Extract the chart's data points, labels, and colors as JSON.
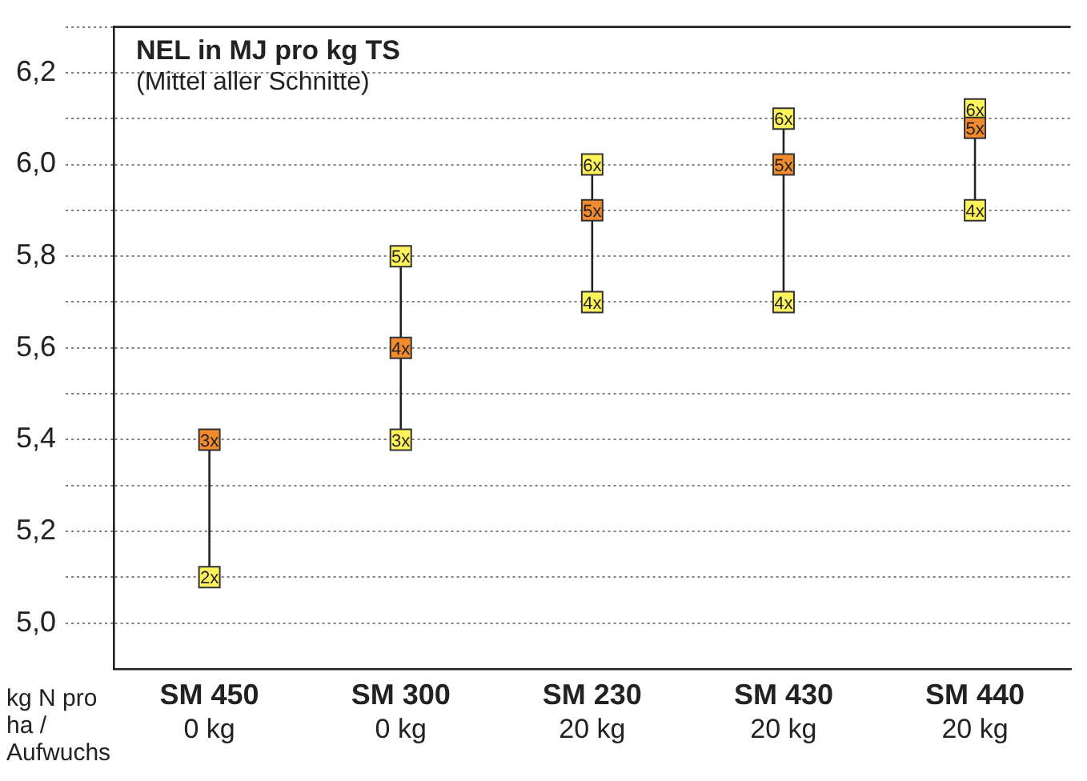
{
  "chart_data": {
    "type": "scatter",
    "title": "NEL in MJ pro kg TS",
    "subtitle": "(Mittel aller Schnitte)",
    "xlabel": "kg N pro ha / Aufwuchs",
    "categories": [
      "SM 450\n0 kg",
      "SM 300\n0 kg",
      "SM 230\n20 kg",
      "SM 430\n20 kg",
      "SM 440\n20 kg"
    ],
    "series": [
      {
        "name": "2x",
        "values": [
          5.1,
          null,
          null,
          null,
          null
        ],
        "colors": [
          "#fff35c",
          null,
          null,
          null,
          null
        ]
      },
      {
        "name": "3x",
        "values": [
          5.4,
          5.4,
          null,
          null,
          null
        ],
        "colors": [
          "#f28a2e",
          "#fff35c",
          null,
          null,
          null
        ]
      },
      {
        "name": "4x",
        "values": [
          null,
          5.6,
          5.7,
          5.7,
          5.9
        ],
        "colors": [
          null,
          "#f28a2e",
          "#fff35c",
          "#fff35c",
          "#fff35c"
        ]
      },
      {
        "name": "5x",
        "values": [
          null,
          5.8,
          5.9,
          6.0,
          6.08
        ],
        "colors": [
          null,
          "#fff35c",
          "#f28a2e",
          "#f28a2e",
          "#f28a2e"
        ]
      },
      {
        "name": "6x",
        "values": [
          null,
          null,
          6.0,
          6.1,
          6.12
        ],
        "colors": [
          null,
          null,
          "#fff35c",
          "#fff35c",
          "#fff35c"
        ]
      }
    ],
    "marker": "square",
    "grid": "y",
    "legend": false,
    "ylim": [
      4.9,
      6.3
    ],
    "yticks": [
      {
        "value": 5.0,
        "label": "5,0"
      },
      {
        "value": 5.1,
        "label": null
      },
      {
        "value": 5.2,
        "label": "5,2"
      },
      {
        "value": 5.3,
        "label": null
      },
      {
        "value": 5.4,
        "label": "5,4"
      },
      {
        "value": 5.5,
        "label": null
      },
      {
        "value": 5.6,
        "label": "5,6"
      },
      {
        "value": 5.7,
        "label": null
      },
      {
        "value": 5.8,
        "label": "5,8"
      },
      {
        "value": 5.9,
        "label": null
      },
      {
        "value": 6.0,
        "label": "6,0"
      },
      {
        "value": 6.1,
        "label": null
      },
      {
        "value": 6.2,
        "label": "6,2"
      },
      {
        "value": 6.3,
        "label": null
      }
    ]
  }
}
